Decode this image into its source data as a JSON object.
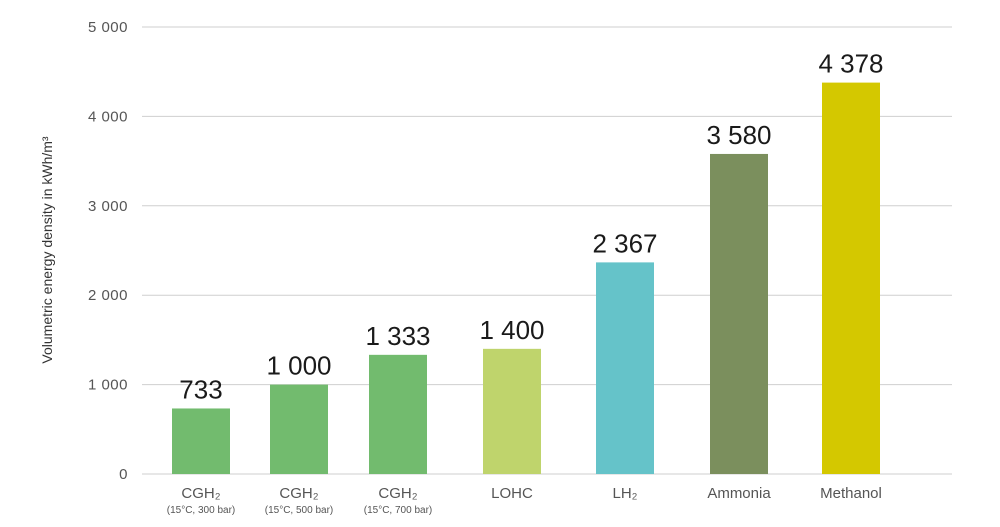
{
  "chart_data": {
    "type": "bar",
    "ylabel": "Volumetric energy density in kWh/m³",
    "ylim": [
      0,
      5000
    ],
    "yticks": [
      0,
      1000,
      2000,
      3000,
      4000,
      5000
    ],
    "ytick_labels": [
      "0",
      "1 000",
      "2 000",
      "3 000",
      "4 000",
      "5 000"
    ],
    "grid": true,
    "categories": [
      {
        "label": "CGH₂",
        "sublabel": "(15°C, 300 bar)",
        "value": 733,
        "value_label": "733",
        "color": "#72bb6e"
      },
      {
        "label": "CGH₂",
        "sublabel": "(15°C, 500 bar)",
        "value": 1000,
        "value_label": "1 000",
        "color": "#72bb6e"
      },
      {
        "label": "CGH₂",
        "sublabel": "(15°C, 700 bar)",
        "value": 1333,
        "value_label": "1 333",
        "color": "#72bb6e"
      },
      {
        "label": "LOHC",
        "sublabel": "",
        "value": 1400,
        "value_label": "1 400",
        "color": "#bfd46c"
      },
      {
        "label": "LH₂",
        "sublabel": "",
        "value": 2367,
        "value_label": "2 367",
        "color": "#65c3c9"
      },
      {
        "label": "Ammonia",
        "sublabel": "",
        "value": 3580,
        "value_label": "3 580",
        "color": "#7b8f5d"
      },
      {
        "label": "Methanol",
        "sublabel": "",
        "value": 4378,
        "value_label": "4 378",
        "color": "#d4c800"
      }
    ]
  }
}
